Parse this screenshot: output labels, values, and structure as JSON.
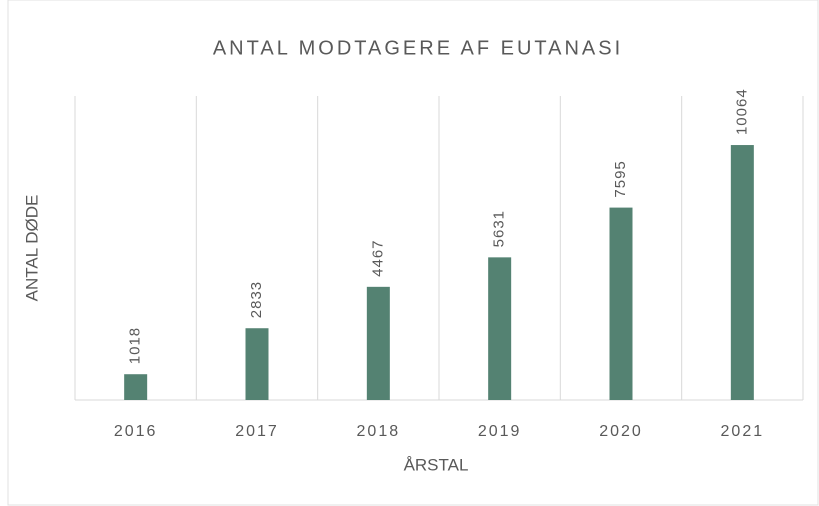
{
  "chart_data": {
    "type": "bar",
    "title": "ANTAL MODTAGERE AF EUTANASI",
    "x_label": "ÅRSTAL",
    "y_label": "ANTAL DØDE",
    "categories": [
      "2016",
      "2017",
      "2018",
      "2019",
      "2020",
      "2021"
    ],
    "values": [
      1018,
      2833,
      4467,
      5631,
      7595,
      10064
    ],
    "color": "#548272",
    "ylim": [
      0,
      12000
    ]
  }
}
